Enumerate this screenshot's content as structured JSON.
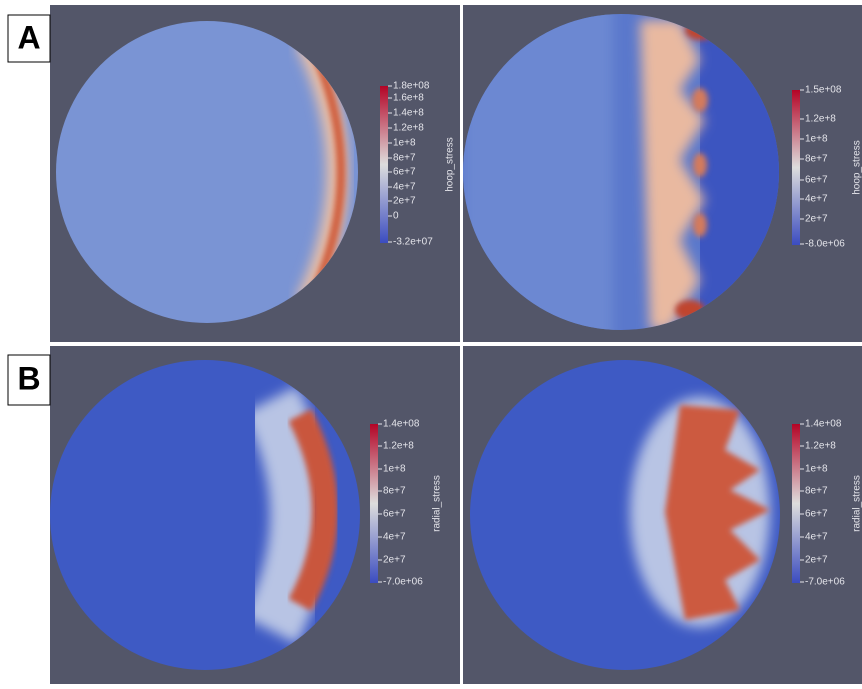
{
  "labels": {
    "a": "A",
    "b": "B"
  },
  "panels": [
    {
      "colorbar": {
        "title": "hoop_stress",
        "ticks": [
          "1.8e+08",
          "1.6e+8",
          "1.4e+8",
          "1.2e+8",
          "1e+8",
          "8e+7",
          "6e+7",
          "4e+7",
          "2e+7",
          "0",
          "-3.2e+07"
        ]
      }
    },
    {
      "colorbar": {
        "title": "hoop_stress",
        "ticks": [
          "1.5e+08",
          "1.2e+8",
          "1e+8",
          "8e+7",
          "6e+7",
          "4e+7",
          "2e+7",
          "-8.0e+06"
        ]
      }
    },
    {
      "colorbar": {
        "title": "radial_stress",
        "ticks": [
          "1.4e+08",
          "1.2e+8",
          "1e+8",
          "8e+7",
          "6e+7",
          "4e+7",
          "2e+7",
          "-7.0e+06"
        ]
      }
    },
    {
      "colorbar": {
        "title": "radial_stress",
        "ticks": [
          "1.4e+08",
          "1.2e+8",
          "1e+8",
          "8e+7",
          "6e+7",
          "4e+7",
          "2e+7",
          "-7.0e+06"
        ]
      }
    }
  ]
}
